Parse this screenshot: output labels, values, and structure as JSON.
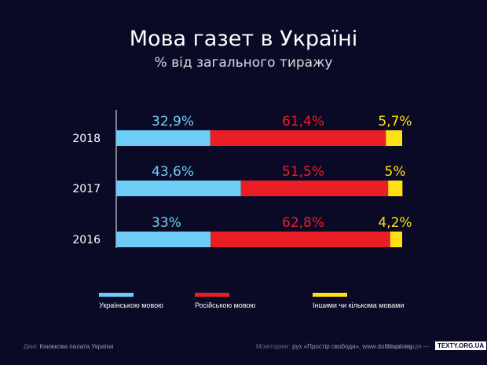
{
  "title": "Мова газет в Україні",
  "subtitle": "% від загального тиражу",
  "chart_data": {
    "type": "bar",
    "stacked": true,
    "orientation": "horizontal",
    "title": "Мова газет в Україні",
    "subtitle": "% від загального тиражу",
    "categories": [
      "2018",
      "2017",
      "2016"
    ],
    "series": [
      {
        "name": "Українською мовою",
        "color": "#6ecdf7",
        "values": [
          32.9,
          43.6,
          33
        ],
        "labels": [
          "32,9%",
          "43,6%",
          "33%"
        ]
      },
      {
        "name": "Російською мовою",
        "color": "#ea1f26",
        "values": [
          61.4,
          51.5,
          62.8
        ],
        "labels": [
          "61,4%",
          "51,5%",
          "62,8%"
        ]
      },
      {
        "name": "Іншими чи кількома мовами",
        "color": "#ffe014",
        "values": [
          5.7,
          5,
          4.2
        ],
        "labels": [
          "5,7%",
          "5%",
          "4,2%"
        ]
      }
    ],
    "xlim": [
      0,
      100
    ],
    "legend_position": "bottom"
  },
  "footer": {
    "source_label": "Дані:",
    "source_value": "Книжкова палата України",
    "monitoring_label": "Моніторинг:",
    "monitoring_value": "рух «Простір свободи», www.dobrovol.org",
    "visual_label": "Візуалізація —",
    "badge": "TEXTY.ORG.UA"
  }
}
